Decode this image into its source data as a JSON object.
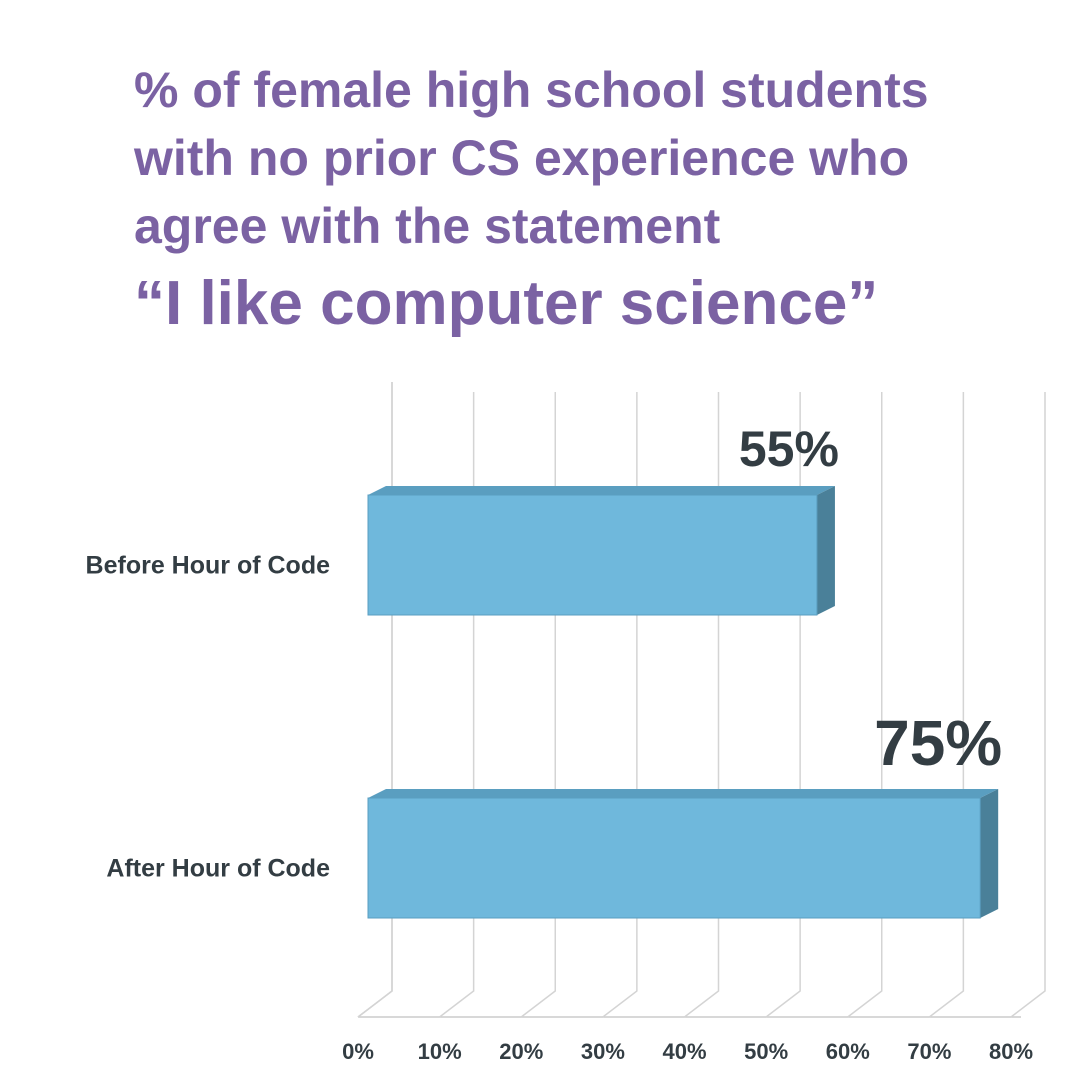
{
  "chart_data": {
    "type": "bar",
    "orientation": "horizontal",
    "title": "% of female high school students with no prior CS experience who agree with the statement",
    "subtitle": "“I like computer science”",
    "categories": [
      "Before Hour of Code",
      "After Hour of Code"
    ],
    "values": [
      55,
      75
    ],
    "value_labels": [
      "55%",
      "75%"
    ],
    "color": "#6fb8dc",
    "xlim": [
      0,
      80
    ],
    "xticks": [
      {
        "value": 0,
        "label": "0%"
      },
      {
        "value": 10,
        "label": "10%"
      },
      {
        "value": 20,
        "label": "20%"
      },
      {
        "value": 30,
        "label": "30%"
      },
      {
        "value": 40,
        "label": "40%"
      },
      {
        "value": 50,
        "label": "50%"
      },
      {
        "value": 60,
        "label": "60%"
      },
      {
        "value": 70,
        "label": "70%"
      },
      {
        "value": 80,
        "label": "80%"
      }
    ],
    "grid": true
  }
}
